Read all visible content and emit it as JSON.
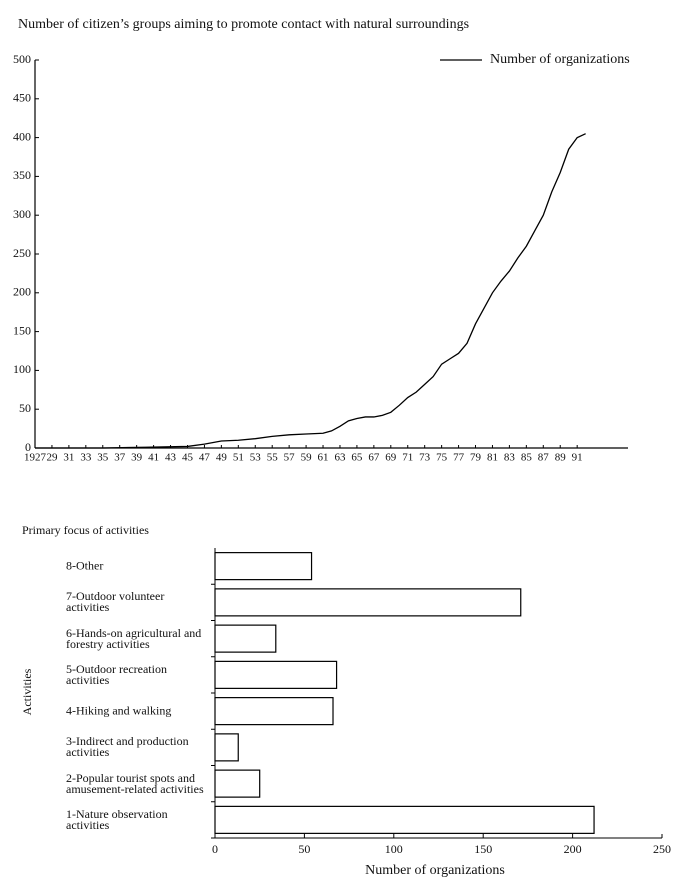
{
  "chart_data": [
    {
      "type": "line",
      "title": "Number of citizen’s groups aiming to promote contact with natural surroundings",
      "x": [
        1927,
        1935,
        1940,
        1945,
        1947,
        1949,
        1951,
        1953,
        1955,
        1957,
        1959,
        1961,
        1962,
        1963,
        1964,
        1965,
        1966,
        1967,
        1968,
        1969,
        1970,
        1971,
        1972,
        1973,
        1974,
        1975,
        1976,
        1977,
        1978,
        1979,
        1980,
        1981,
        1982,
        1983,
        1984,
        1985,
        1986,
        1987,
        1988,
        1989,
        1990,
        1991,
        1992
      ],
      "series": [
        {
          "name": "Number of organizations",
          "color": "#000000",
          "values": [
            0,
            0,
            1,
            2,
            5,
            9,
            10,
            12,
            15,
            17,
            18,
            19,
            22,
            28,
            35,
            38,
            40,
            40,
            42,
            46,
            55,
            65,
            72,
            82,
            92,
            108,
            115,
            122,
            135,
            160,
            180,
            200,
            215,
            228,
            245,
            260,
            280,
            300,
            330,
            355,
            385,
            400,
            405
          ]
        }
      ],
      "xlim": [
        1927,
        1997
      ],
      "xticks": [
        {
          "value": 1927,
          "label": "1927"
        },
        {
          "value": 1929,
          "label": "29"
        },
        {
          "value": 1931,
          "label": "31"
        },
        {
          "value": 1933,
          "label": "33"
        },
        {
          "value": 1935,
          "label": "35"
        },
        {
          "value": 1937,
          "label": "37"
        },
        {
          "value": 1939,
          "label": "39"
        },
        {
          "value": 1941,
          "label": "41"
        },
        {
          "value": 1943,
          "label": "43"
        },
        {
          "value": 1945,
          "label": "45"
        },
        {
          "value": 1947,
          "label": "47"
        },
        {
          "value": 1949,
          "label": "49"
        },
        {
          "value": 1951,
          "label": "51"
        },
        {
          "value": 1953,
          "label": "53"
        },
        {
          "value": 1955,
          "label": "55"
        },
        {
          "value": 1957,
          "label": "57"
        },
        {
          "value": 1959,
          "label": "59"
        },
        {
          "value": 1961,
          "label": "61"
        },
        {
          "value": 1963,
          "label": "63"
        },
        {
          "value": 1965,
          "label": "65"
        },
        {
          "value": 1967,
          "label": "67"
        },
        {
          "value": 1969,
          "label": "69"
        },
        {
          "value": 1971,
          "label": "71"
        },
        {
          "value": 1973,
          "label": "73"
        },
        {
          "value": 1975,
          "label": "75"
        },
        {
          "value": 1977,
          "label": "77"
        },
        {
          "value": 1979,
          "label": "79"
        },
        {
          "value": 1981,
          "label": "81"
        },
        {
          "value": 1983,
          "label": "83"
        },
        {
          "value": 1985,
          "label": "85"
        },
        {
          "value": 1987,
          "label": "87"
        },
        {
          "value": 1989,
          "label": "89"
        },
        {
          "value": 1991,
          "label": "91"
        }
      ],
      "ylim": [
        0,
        500
      ],
      "yticks": [
        0,
        50,
        100,
        150,
        200,
        250,
        300,
        350,
        400,
        450,
        500
      ],
      "legend": "top-right"
    },
    {
      "type": "bar",
      "orientation": "horizontal",
      "title": "Primary focus of activities",
      "ylabel": "Activities",
      "xlabel": "Number of organizations",
      "categories": [
        "1-Nature observation activities",
        "2-Popular tourist spots and amusement-related activities",
        "3-Indirect and production activities",
        "4-Hiking and walking",
        "5-Outdoor recreation activities",
        "6-Hands-on agricultural and forestry activities",
        "7-Outdoor volunteer activities",
        "8-Other"
      ],
      "values": [
        212,
        25,
        13,
        66,
        68,
        34,
        171,
        54
      ],
      "color": "#ffffff",
      "xlim": [
        0,
        250
      ],
      "xticks": [
        0,
        50,
        100,
        150,
        200,
        250
      ]
    }
  ]
}
